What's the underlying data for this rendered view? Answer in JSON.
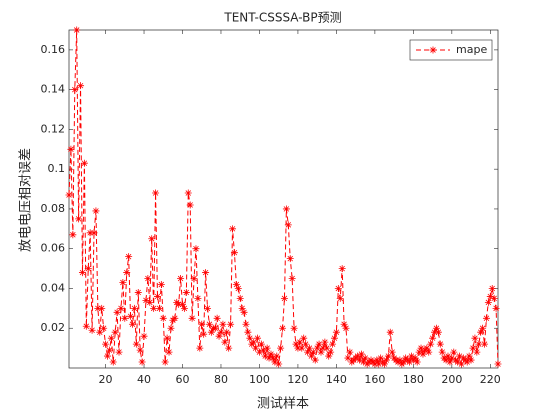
{
  "chart_data": {
    "type": "line",
    "title": "TENT-CSSSA-BP预测",
    "xlabel": "测试样本",
    "ylabel": "放电电压相对误差",
    "x": [
      1,
      2,
      3,
      4,
      5,
      6,
      7,
      8,
      9,
      10,
      11,
      12,
      13,
      14,
      15,
      16,
      17,
      18,
      19,
      20,
      21,
      22,
      23,
      24,
      25,
      26,
      27,
      28,
      29,
      30,
      31,
      32,
      33,
      34,
      35,
      36,
      37,
      38,
      39,
      40,
      41,
      42,
      43,
      44,
      45,
      46,
      47,
      48,
      49,
      50,
      51,
      52,
      53,
      54,
      55,
      56,
      57,
      58,
      59,
      60,
      61,
      62,
      63,
      64,
      65,
      66,
      67,
      68,
      69,
      70,
      71,
      72,
      73,
      74,
      75,
      76,
      77,
      78,
      79,
      80,
      81,
      82,
      83,
      84,
      85,
      86,
      87,
      88,
      89,
      90,
      91,
      92,
      93,
      94,
      95,
      96,
      97,
      98,
      99,
      100,
      101,
      102,
      103,
      104,
      105,
      106,
      107,
      108,
      109,
      110,
      111,
      112,
      113,
      114,
      115,
      116,
      117,
      118,
      119,
      120,
      121,
      122,
      123,
      124,
      125,
      126,
      127,
      128,
      129,
      130,
      131,
      132,
      133,
      134,
      135,
      136,
      137,
      138,
      139,
      140,
      141,
      142,
      143,
      144,
      145,
      146,
      147,
      148,
      149,
      150,
      151,
      152,
      153,
      154,
      155,
      156,
      157,
      158,
      159,
      160,
      161,
      162,
      163,
      164,
      165,
      166,
      167,
      168,
      169,
      170,
      171,
      172,
      173,
      174,
      175,
      176,
      177,
      178,
      179,
      180,
      181,
      182,
      183,
      184,
      185,
      186,
      187,
      188,
      189,
      190,
      191,
      192,
      193,
      194,
      195,
      196,
      197,
      198,
      199,
      200,
      201,
      202,
      203,
      204,
      205,
      206,
      207,
      208,
      209,
      210,
      211,
      212,
      213,
      214,
      215,
      216,
      217,
      218,
      219,
      220,
      221,
      222,
      223,
      224
    ],
    "series": [
      {
        "name": "mape",
        "color": "#ff0000",
        "values": [
          0.087,
          0.11,
          0.067,
          0.14,
          0.17,
          0.075,
          0.142,
          0.048,
          0.103,
          0.021,
          0.05,
          0.068,
          0.019,
          0.068,
          0.079,
          0.03,
          0.018,
          0.03,
          0.02,
          0.012,
          0.006,
          0.009,
          0.015,
          0.003,
          0.018,
          0.028,
          0.008,
          0.03,
          0.043,
          0.025,
          0.048,
          0.056,
          0.026,
          0.022,
          0.03,
          0.012,
          0.038,
          0.009,
          0.003,
          0.016,
          0.034,
          0.045,
          0.033,
          0.065,
          0.03,
          0.088,
          0.036,
          0.03,
          0.042,
          0.025,
          0.003,
          0.015,
          0.008,
          0.02,
          0.024,
          0.025,
          0.033,
          0.032,
          0.045,
          0.032,
          0.03,
          0.038,
          0.088,
          0.082,
          0.025,
          0.045,
          0.06,
          0.035,
          0.01,
          0.022,
          0.017,
          0.048,
          0.03,
          0.022,
          0.018,
          0.02,
          0.02,
          0.025,
          0.016,
          0.018,
          0.022,
          0.013,
          0.018,
          0.01,
          0.022,
          0.07,
          0.058,
          0.042,
          0.04,
          0.035,
          0.03,
          0.028,
          0.022,
          0.018,
          0.015,
          0.012,
          0.013,
          0.01,
          0.015,
          0.008,
          0.012,
          0.009,
          0.006,
          0.01,
          0.005,
          0.007,
          0.005,
          0.003,
          0.006,
          0.002,
          0.01,
          0.02,
          0.035,
          0.08,
          0.072,
          0.055,
          0.045,
          0.02,
          0.012,
          0.01,
          0.013,
          0.01,
          0.015,
          0.012,
          0.008,
          0.01,
          0.006,
          0.008,
          0.004,
          0.01,
          0.012,
          0.008,
          0.01,
          0.013,
          0.01,
          0.006,
          0.008,
          0.012,
          0.015,
          0.018,
          0.04,
          0.035,
          0.05,
          0.022,
          0.02,
          0.005,
          0.008,
          0.003,
          0.004,
          0.005,
          0.006,
          0.004,
          0.007,
          0.003,
          0.005,
          0.002,
          0.003,
          0.004,
          0.003,
          0.002,
          0.004,
          0.002,
          0.005,
          0.003,
          0.002,
          0.004,
          0.006,
          0.018,
          0.008,
          0.005,
          0.004,
          0.003,
          0.004,
          0.002,
          0.003,
          0.005,
          0.004,
          0.003,
          0.006,
          0.004,
          0.005,
          0.003,
          0.008,
          0.01,
          0.007,
          0.009,
          0.01,
          0.008,
          0.012,
          0.015,
          0.018,
          0.02,
          0.018,
          0.012,
          0.008,
          0.005,
          0.004,
          0.006,
          0.003,
          0.005,
          0.008,
          0.004,
          0.003,
          0.006,
          0.002,
          0.005,
          0.004,
          0.003,
          0.006,
          0.004,
          0.01,
          0.015,
          0.008,
          0.012,
          0.018,
          0.02,
          0.012,
          0.025,
          0.033,
          0.036,
          0.04,
          0.035,
          0.03,
          0.002
        ]
      }
    ],
    "xlim": [
      1,
      224
    ],
    "ylim": [
      0,
      0.17
    ],
    "xticks": [
      20,
      40,
      60,
      80,
      100,
      120,
      140,
      160,
      180,
      200,
      220
    ],
    "yticks": [
      0.02,
      0.04,
      0.06,
      0.08,
      0.1,
      0.12,
      0.14,
      0.16
    ],
    "line_style": "dashed",
    "marker": "asterisk",
    "legend_position": "upper right"
  }
}
